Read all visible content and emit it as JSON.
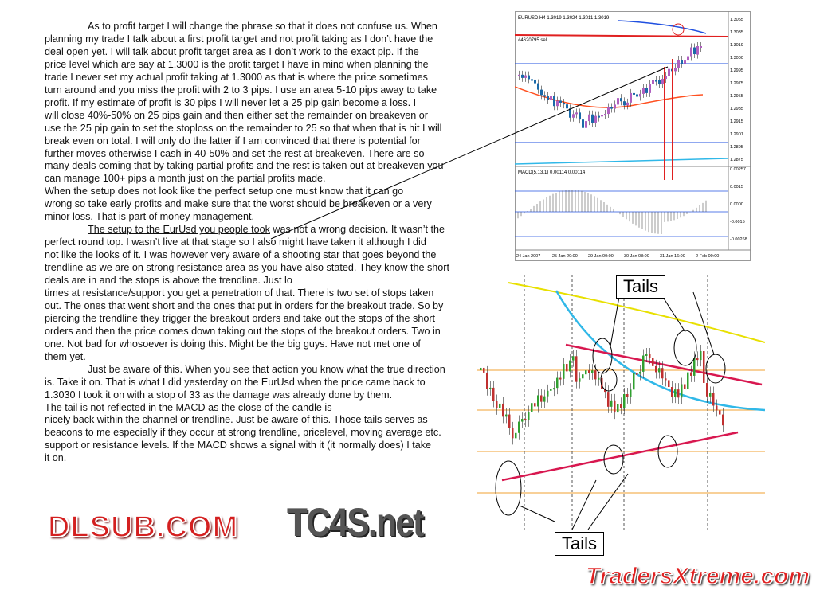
{
  "document": {
    "lines": [
      {
        "text": "As to profit target I will change the phrase so that it does not confuse us. When",
        "indent": true
      },
      {
        "text": "planning my trade I talk about a first profit target and not profit taking as I don’t have the"
      },
      {
        "text": "deal open yet. I will talk about profit target area as I don’t work to the exact pip. If the"
      },
      {
        "text": "price level which are say at 1.3000 is the profit target I have in mind when planning the"
      },
      {
        "text": "trade I never set my actual profit taking at 1.3000 as that is where the price sometimes"
      },
      {
        "text": "turn around and you miss the profit with 2 to 3 pips. I use an area 5-10 pips away to take"
      },
      {
        "text": "profit. If my estimate of profit is 30 pips I will never let a 25 pip gain become a loss. I"
      },
      {
        "text": "will close 40%-50% on 25 pips gain and then either set the remainder on breakeven or"
      },
      {
        "text": "use the 25 pip gain to set the stoploss on the remainder to 25 so that when that is hit I will"
      },
      {
        "text": "break even on total. I will only do the latter if I am convinced that there is potential for"
      },
      {
        "text": "further moves otherwise I cash in 40-50% and set the rest at breakeven. There are so"
      },
      {
        "text": "many deals coming that by taking partial profits and the rest is taken out at breakeven you"
      },
      {
        "text": "can manage 100+ pips a month just on the partial profits made."
      },
      {
        "text": "When the setup does not look like the perfect setup one must know that it can go"
      },
      {
        "text": "wrong so take early profits and make sure that the worst should be breakeven or a very"
      },
      {
        "text": "minor loss. That is part of money management."
      },
      {
        "text": "The setup to the EurUsd you people took",
        "tail": " was not a wrong decision. It wasn’t the",
        "indent": true,
        "underline": true
      },
      {
        "text": "perfect round top. I wasn’t live at that stage so I also might have taken it although I did"
      },
      {
        "text": "not like the looks of it. I was however very aware of a shooting star that goes beyond the"
      },
      {
        "text": "trendline as we are on strong resistance area as you have also stated. They know the short"
      },
      {
        "text": "deals are in and the stops is above the trendline. Just lo"
      },
      {
        "text": "times at resistance/support you get a penetration of that. There is two set of stops taken"
      },
      {
        "text": "out. The ones that went short and the ones that put in orders for the breakout trade. So by"
      },
      {
        "text": "piercing the trendline they trigger the breakout orders and take out the stops of the short"
      },
      {
        "text": "orders and then the price comes down taking out the stops of the breakout orders. Two in"
      },
      {
        "text": "one. Not bad for whosoever is doing this. Might be the big guys. Have not met one of"
      },
      {
        "text": "them yet."
      },
      {
        "text": "Just be aware of this. When you see that action you know what the true direction",
        "indent": true
      },
      {
        "text": "is. Take it on. That is what I did yesterday on the EurUsd when the price came back to"
      },
      {
        "text": "1.3030 I took it on with a stop of 33 as the damage was already done by them."
      },
      {
        "text": "The tail is not reflected in the MACD as the close of the candle is"
      },
      {
        "text": "nicely back within the channel or trendline. Just be aware of this. Those tails serves as"
      },
      {
        "text": "beacons to me especially if they occur at strong trendline, pricelevel, moving average etc."
      },
      {
        "text": "support or resistance levels. If the MACD shows a signal with it (it normally does) I take"
      },
      {
        "text": "it on."
      }
    ]
  },
  "chart_top": {
    "title": "EURUSD,H4  1.3019 1.3024 1.3011 1.3019",
    "order_label": "#4620795 sell",
    "price_ticks": [
      "1.3055",
      "1.3035",
      "1.3019",
      "1.3000",
      "1.2995",
      "1.2975",
      "1.2955",
      "1.2935",
      "1.2915",
      "1.2901",
      "1.2895",
      "1.2875"
    ],
    "macd_label": "MACD(5,13,1) 0.00114 0.00114",
    "macd_ticks": [
      "0.00257",
      "0.0015",
      "0.0000",
      "-0.0015",
      "-0.00268"
    ],
    "time_ticks": [
      "24 Jan 2007",
      "25 Jan 20:00",
      "29 Jan 00:00",
      "30 Jan 08:00",
      "31 Jan 16:00",
      "2 Feb 00:00"
    ]
  },
  "chart_bottom": {
    "callout_top": "Tails",
    "callout_bottom": "Tails"
  },
  "watermarks": {
    "top_right": "TC4S.net",
    "middle": "DLSUB.COM",
    "bottom_right": "TradersXtreme.com"
  },
  "colors": {
    "bull": "#b060c0",
    "bear": "#1a6aa8",
    "red": "#e02020",
    "blue": "#2050e0",
    "cyan": "#30b8e8"
  }
}
